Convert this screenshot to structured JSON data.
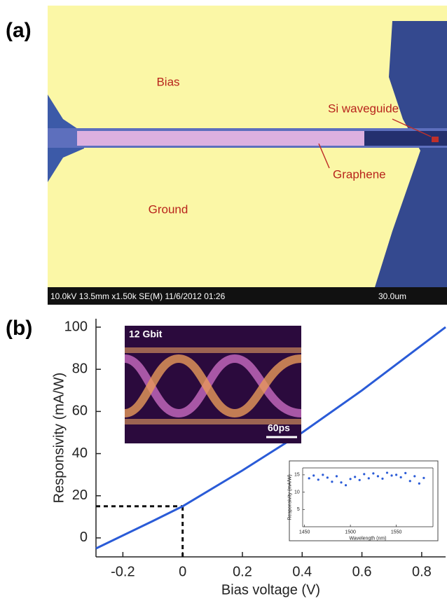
{
  "panel_a": {
    "label": "(a)",
    "bias": "Bias",
    "waveguide": "Si waveguide",
    "graphene": "Graphene",
    "ground": "Ground",
    "info": "10.0kV 13.5mm x1.50k SE(M) 11/6/2012 01:26",
    "scale": "30.0um"
  },
  "panel_b_label": "(b)",
  "eye_inset": {
    "title": "12 Gbit",
    "scale": "60ps"
  },
  "chart_data": [
    {
      "type": "line",
      "xlabel": "Bias voltage (V)",
      "ylabel": "Responsivity (mA/W)",
      "x": [
        -0.29,
        -0.1,
        0,
        0.2,
        0.4,
        0.6,
        0.88
      ],
      "series": [
        {
          "color": "#2a5bd7",
          "values": [
            -5,
            8,
            15,
            32,
            50,
            70,
            100
          ]
        }
      ],
      "guides": [
        {
          "x": 0,
          "y": 15
        }
      ],
      "xlim": [
        -0.29,
        0.88
      ],
      "xticks": [
        -0.2,
        0,
        0.2,
        0.4,
        0.6,
        0.8
      ],
      "ylim": [
        -9,
        104
      ],
      "yticks": [
        0,
        20,
        40,
        60,
        80,
        100
      ]
    },
    {
      "type": "scatter",
      "xlabel": "Wavelength (nm)",
      "ylabel": "Responsivity (mA/W)",
      "x": [
        1455,
        1460,
        1465,
        1470,
        1475,
        1480,
        1485,
        1490,
        1495,
        1500,
        1505,
        1510,
        1515,
        1520,
        1525,
        1530,
        1535,
        1540,
        1545,
        1550,
        1555,
        1560,
        1565,
        1570,
        1575,
        1580
      ],
      "series": [
        {
          "color": "#2a5bd7",
          "values": [
            14,
            14.8,
            13.6,
            15,
            14.2,
            13,
            14.6,
            12.8,
            12,
            13.8,
            14.4,
            13.5,
            15.2,
            14,
            15.4,
            14.6,
            13.9,
            15.6,
            14.8,
            15,
            14.3,
            15.5,
            13.2,
            14.6,
            12.5,
            14.1
          ]
        }
      ],
      "xlim": [
        1448,
        1590
      ],
      "xticks": [
        1450,
        1500,
        1550
      ],
      "ylim": [
        0,
        17
      ],
      "yticks": [
        5,
        10,
        15
      ]
    }
  ]
}
